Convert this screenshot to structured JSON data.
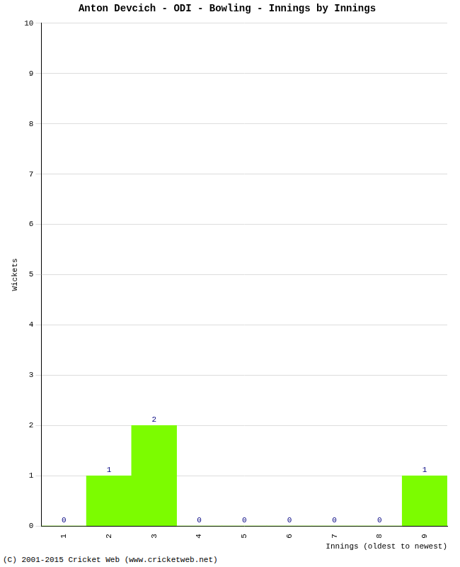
{
  "chart_data": {
    "type": "bar",
    "title": "Anton Devcich - ODI - Bowling - Innings by Innings",
    "x_label": "Innings (oldest to newest)",
    "y_label": "Wickets",
    "categories": [
      "1",
      "2",
      "3",
      "4",
      "5",
      "6",
      "7",
      "8",
      "9"
    ],
    "values": [
      0,
      1,
      2,
      0,
      0,
      0,
      0,
      0,
      1
    ],
    "color": "#7cfc00",
    "ylim": [
      0,
      10
    ],
    "yticks": [
      0,
      1,
      2,
      3,
      4,
      5,
      6,
      7,
      8,
      9,
      10
    ],
    "grid": true,
    "data_labels": true,
    "annotations": [
      "(C) 2001-2015 Cricket Web (www.cricketweb.net)"
    ]
  }
}
